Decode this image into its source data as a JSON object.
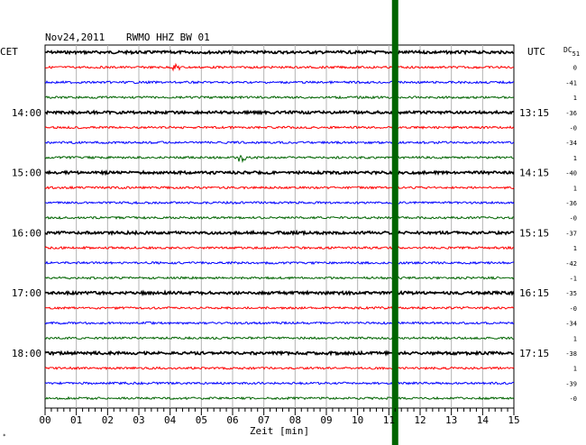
{
  "header": {
    "date": "Nov24,2011",
    "station": "RWMO HHZ BW 01",
    "left_zone": "CET",
    "right_zone": "UTC",
    "dc_label": "DC",
    "dc_sub": "51"
  },
  "chart_data": {
    "type": "line",
    "title": "Nov24,2011  RWMO HHZ BW 01",
    "xlabel": "Zeit [min]",
    "ylabel": "",
    "xlim": [
      0,
      15
    ],
    "x_ticks": [
      "00",
      "01",
      "02",
      "03",
      "04",
      "05",
      "06",
      "07",
      "08",
      "09",
      "10",
      "11",
      "12",
      "13",
      "14",
      "15"
    ],
    "grid": true,
    "hour_labels_left": [
      {
        "trace": 4,
        "label": "14:00"
      },
      {
        "trace": 8,
        "label": "15:00"
      },
      {
        "trace": 12,
        "label": "16:00"
      },
      {
        "trace": 16,
        "label": "17:00"
      },
      {
        "trace": 20,
        "label": "18:00"
      }
    ],
    "hour_labels_right": [
      {
        "trace": 4,
        "label": "13:15"
      },
      {
        "trace": 8,
        "label": "14:15"
      },
      {
        "trace": 12,
        "label": "15:15"
      },
      {
        "trace": 16,
        "label": "16:15"
      },
      {
        "trace": 20,
        "label": "17:15"
      }
    ],
    "dc_offsets": [
      "0",
      "-41",
      "1",
      "-36",
      "-0",
      "-34",
      "1",
      "-40",
      "1",
      "-36",
      "-0",
      "-37",
      "1",
      "-42",
      "-1",
      "-35",
      "-0",
      "-34",
      "1",
      "-38",
      "1",
      "-39",
      "-0"
    ],
    "trace_colors": [
      "#000000",
      "#ff0000",
      "#0000ff",
      "#006400"
    ],
    "series_count": 24,
    "marker": {
      "x_min": 11.2,
      "color": "#006400"
    },
    "events": [
      {
        "trace": 1,
        "x_min": 4.2,
        "amp": 3
      },
      {
        "trace": 7,
        "x_min": 6.3,
        "amp": 5
      }
    ]
  }
}
